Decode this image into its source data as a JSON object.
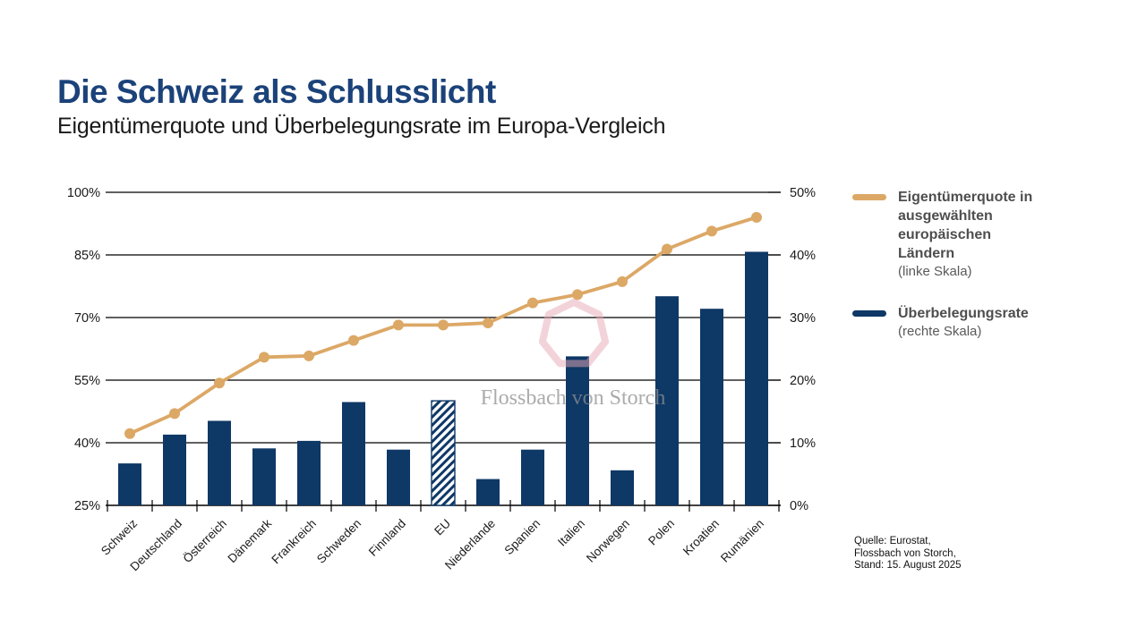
{
  "header": {
    "title": "Die Schweiz als Schlusslicht",
    "subtitle": "Eigentümerquote und Überbelegungsrate im Europa-Vergleich"
  },
  "colors": {
    "title_blue": "#1B4279",
    "bar_navy": "#0E3866",
    "line_tan": "#DCA866",
    "axis_black": "#1a1a1a",
    "watermark_gray": "#8F8F8F",
    "watermark_pink": "#E8A7B5"
  },
  "legend": {
    "items": [
      {
        "label": "Eigentümerquote in ausgewählten europäischen Ländern",
        "sublabel": "(linke Skala)",
        "color": "#DCA866",
        "type": "line"
      },
      {
        "label": "Überbelegungsrate",
        "sublabel": "(rechte Skala)",
        "color": "#0E3866",
        "type": "bar"
      }
    ]
  },
  "source": {
    "lines": [
      "Quelle: Eurostat,",
      "Flossbach von Storch,",
      "Stand: 15. August 2025"
    ]
  },
  "watermark": {
    "text": "Flossbach von Storch"
  },
  "chart_data": {
    "type": "bar",
    "title": "Eigentümerquote und Überbelegungsrate im Europa-Vergleich",
    "categories": [
      "Schweiz",
      "Deutschland",
      "Österreich",
      "Dänemark",
      "Frankreich",
      "Schweden",
      "Finnland",
      "EU",
      "Niederlande",
      "Spanien",
      "Italien",
      "Norwegen",
      "Polen",
      "Kroatien",
      "Rumänien"
    ],
    "series": [
      {
        "name": "Eigentümerquote in ausgewählten europäischen Ländern (linke Skala)",
        "type": "line",
        "axis": "left",
        "color": "#DCA866",
        "values": [
          42.2,
          47.0,
          54.3,
          60.5,
          60.8,
          64.5,
          68.2,
          68.2,
          68.7,
          73.5,
          75.5,
          78.6,
          86.4,
          90.7,
          94.0
        ]
      },
      {
        "name": "Überbelegungsrate (rechte Skala)",
        "type": "bar",
        "axis": "right",
        "color": "#0E3866",
        "values": [
          6.7,
          11.3,
          13.5,
          9.1,
          10.3,
          16.5,
          8.9,
          16.7,
          4.2,
          8.9,
          23.8,
          5.6,
          33.4,
          31.4,
          40.5
        ],
        "hatched_category": "EU"
      }
    ],
    "left_axis": {
      "min": 25,
      "max": 100,
      "tick_values": [
        100,
        85,
        70,
        55,
        40,
        25
      ],
      "tick_labels": [
        "100%",
        "85%",
        "70%",
        "55%",
        "40%",
        "25%"
      ]
    },
    "right_axis": {
      "min": 0,
      "max": 50,
      "tick_values": [
        50,
        40,
        30,
        20,
        10,
        0
      ],
      "tick_labels": [
        "50%",
        "40%",
        "30%",
        "20%",
        "10%",
        "0%"
      ]
    },
    "grid": true,
    "legend_position": "right",
    "xlabel": "",
    "ylabel": ""
  }
}
